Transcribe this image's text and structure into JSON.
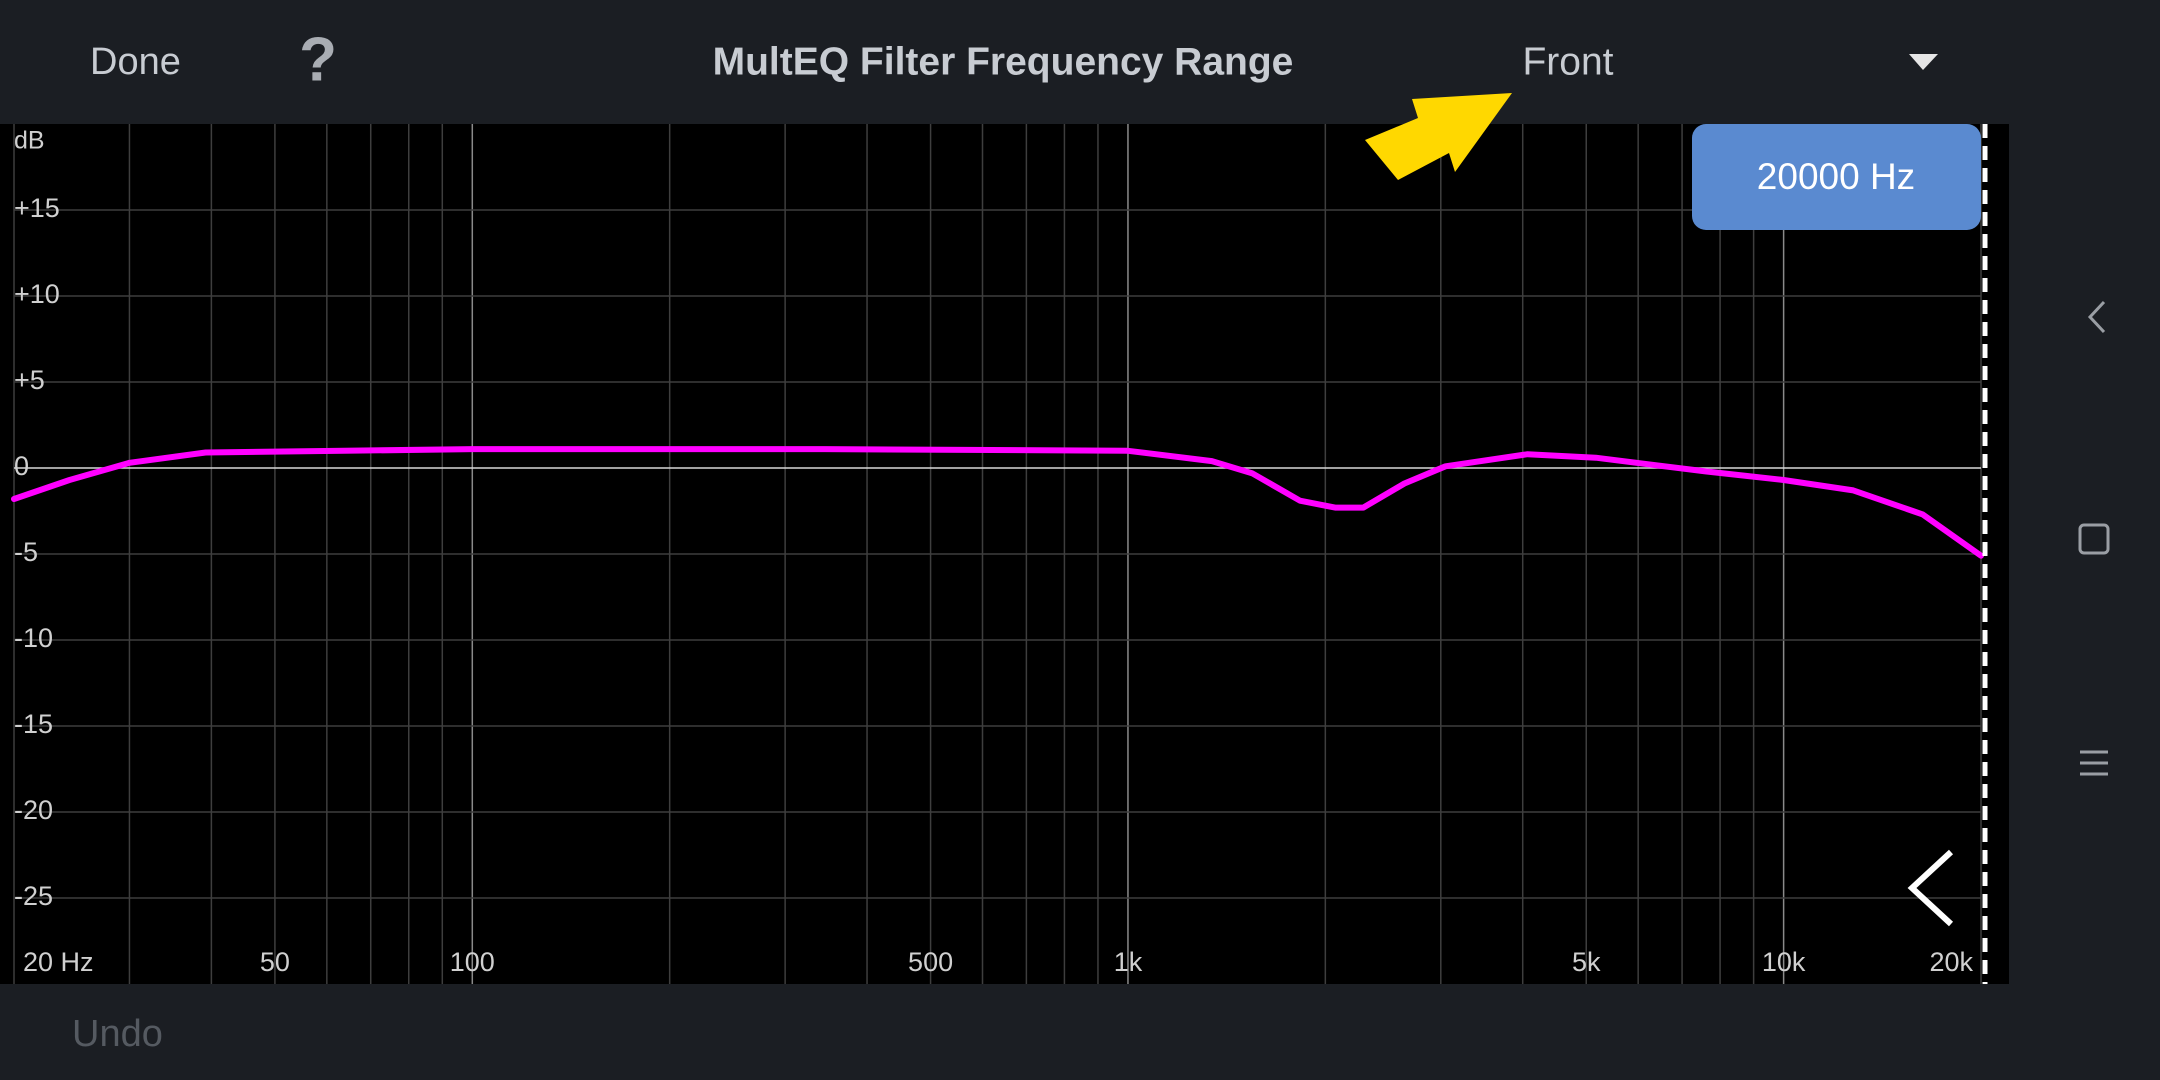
{
  "header": {
    "done": "Done",
    "help": "?",
    "title": "MultEQ Filter Frequency Range",
    "channel": "Front"
  },
  "frequency_badge": "20000 Hz",
  "footer": {
    "undo": "Undo"
  },
  "chart_data": {
    "type": "line",
    "y_label": "dB",
    "x_log": true,
    "grid": true,
    "xlim": [
      20,
      20000
    ],
    "ylim": [
      -30,
      20
    ],
    "xticks": [
      {
        "value": 20,
        "label": "20 Hz"
      },
      50,
      100,
      500,
      {
        "value": 1000,
        "label": "1k"
      },
      {
        "value": 5000,
        "label": "5k"
      },
      {
        "value": 10000,
        "label": "10k"
      },
      {
        "value": 20000,
        "label": "20k"
      }
    ],
    "x_minor_ticks": [
      30,
      40,
      60,
      70,
      80,
      90,
      200,
      300,
      400,
      600,
      700,
      800,
      900,
      2000,
      3000,
      4000,
      6000,
      7000,
      8000,
      9000
    ],
    "yticks": [
      {
        "value": 15,
        "label": "+15"
      },
      {
        "value": 10,
        "label": "+10"
      },
      {
        "value": 5,
        "label": "+5"
      },
      0,
      -5,
      -10,
      -15,
      -20,
      -25
    ],
    "x": [
      20,
      24.3,
      30,
      39.2,
      63.8,
      100,
      345,
      1000,
      1343,
      1546,
      1830,
      2070,
      2285,
      2640,
      3050,
      4070,
      5170,
      7600,
      10000,
      12770,
      16300,
      20000
    ],
    "series": [
      {
        "color": "#ff00ff",
        "values": [
          -1.8,
          -0.7,
          0.3,
          0.9,
          1.0,
          1.1,
          1.1,
          1.0,
          0.4,
          -0.3,
          -1.9,
          -2.3,
          -2.3,
          -0.9,
          0.1,
          0.8,
          0.6,
          -0.2,
          -0.7,
          -1.3,
          -2.7,
          -5.1
        ]
      }
    ]
  }
}
